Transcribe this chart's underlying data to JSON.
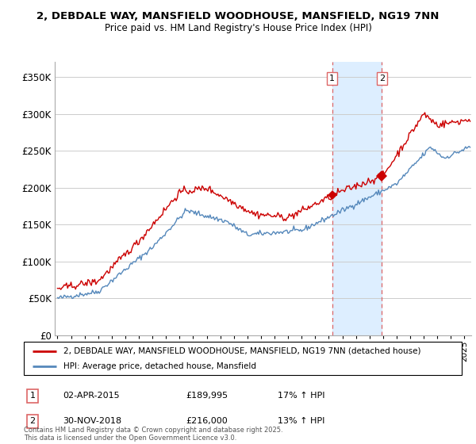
{
  "title1": "2, DEBDALE WAY, MANSFIELD WOODHOUSE, MANSFIELD, NG19 7NN",
  "title2": "Price paid vs. HM Land Registry's House Price Index (HPI)",
  "legend_line1": "2, DEBDALE WAY, MANSFIELD WOODHOUSE, MANSFIELD, NG19 7NN (detached house)",
  "legend_line2": "HPI: Average price, detached house, Mansfield",
  "footnote": "Contains HM Land Registry data © Crown copyright and database right 2025.\nThis data is licensed under the Open Government Licence v3.0.",
  "transaction1": {
    "num": "1",
    "date": "02-APR-2015",
    "price": "£189,995",
    "hpi": "17% ↑ HPI"
  },
  "transaction2": {
    "num": "2",
    "date": "30-NOV-2018",
    "price": "£216,000",
    "hpi": "13% ↑ HPI"
  },
  "ylim": [
    0,
    370000
  ],
  "yticks": [
    0,
    50000,
    100000,
    150000,
    200000,
    250000,
    300000,
    350000
  ],
  "ytick_labels": [
    "£0",
    "£50K",
    "£100K",
    "£150K",
    "£200K",
    "£250K",
    "£300K",
    "£350K"
  ],
  "red_color": "#cc0000",
  "blue_color": "#5588bb",
  "span_color": "#ddeeff",
  "vline_color": "#dd6666",
  "marker1_x": 2015.25,
  "marker1_y": 189995,
  "marker2_x": 2018.92,
  "marker2_y": 216000,
  "xmin": 1994.8,
  "xmax": 2025.5
}
